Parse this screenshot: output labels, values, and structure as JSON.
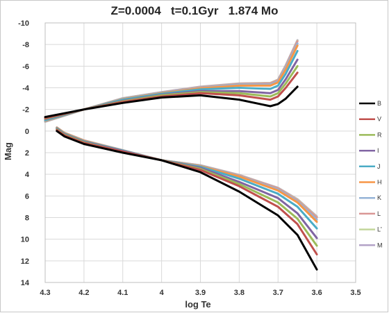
{
  "chart_data": {
    "type": "line",
    "title": "Z=0.0004   t=0.1Gyr   1.874 Mo",
    "xlabel": "log Te",
    "ylabel": "Mag",
    "xlim": [
      4.3,
      3.5
    ],
    "ylim": [
      -10,
      14
    ],
    "y_reversed": true,
    "x_reversed": true,
    "grid": true,
    "legend_position": "right",
    "x_ticks": [
      "4.3",
      "4.2",
      "4.1",
      "4",
      "3.9",
      "3.8",
      "3.7",
      "3.6",
      "3.5"
    ],
    "y_ticks": [
      "-10",
      "-8",
      "-6",
      "-4",
      "-2",
      "0",
      "2",
      "4",
      "6",
      "8",
      "10",
      "12",
      "14"
    ],
    "series": [
      {
        "name": "B",
        "color": "#000000",
        "main_sequence": [
          [
            4.27,
            -0.0
          ],
          [
            4.25,
            0.5
          ],
          [
            4.2,
            1.2
          ],
          [
            4.1,
            2.0
          ],
          [
            4.0,
            2.7
          ],
          [
            3.9,
            3.8
          ],
          [
            3.8,
            5.6
          ],
          [
            3.7,
            7.8
          ],
          [
            3.65,
            9.6
          ],
          [
            3.6,
            12.8
          ]
        ],
        "giant_branch": [
          [
            4.3,
            -1.3
          ],
          [
            4.2,
            -2.0
          ],
          [
            4.1,
            -2.6
          ],
          [
            4.0,
            -3.1
          ],
          [
            3.9,
            -3.3
          ],
          [
            3.8,
            -2.9
          ],
          [
            3.72,
            -2.3
          ],
          [
            3.7,
            -2.5
          ],
          [
            3.68,
            -3.0
          ],
          [
            3.65,
            -4.1
          ]
        ]
      },
      {
        "name": "V",
        "color": "#c0504d",
        "main_sequence": [
          [
            4.27,
            -0.1
          ],
          [
            4.25,
            0.4
          ],
          [
            4.2,
            1.1
          ],
          [
            4.1,
            1.9
          ],
          [
            4.0,
            2.7
          ],
          [
            3.9,
            3.6
          ],
          [
            3.8,
            5.1
          ],
          [
            3.7,
            7.0
          ],
          [
            3.65,
            8.6
          ],
          [
            3.6,
            11.4
          ]
        ],
        "giant_branch": [
          [
            4.3,
            -1.2
          ],
          [
            4.2,
            -2.0
          ],
          [
            4.1,
            -2.7
          ],
          [
            4.0,
            -3.2
          ],
          [
            3.9,
            -3.5
          ],
          [
            3.8,
            -3.3
          ],
          [
            3.72,
            -2.9
          ],
          [
            3.7,
            -3.2
          ],
          [
            3.68,
            -4.0
          ],
          [
            3.65,
            -5.4
          ]
        ]
      },
      {
        "name": "R",
        "color": "#9bbb59",
        "main_sequence": [
          [
            4.27,
            -0.15
          ],
          [
            4.25,
            0.35
          ],
          [
            4.2,
            1.05
          ],
          [
            4.1,
            1.9
          ],
          [
            4.0,
            2.7
          ],
          [
            3.9,
            3.5
          ],
          [
            3.8,
            4.9
          ],
          [
            3.7,
            6.6
          ],
          [
            3.65,
            8.1
          ],
          [
            3.6,
            10.6
          ]
        ],
        "giant_branch": [
          [
            4.3,
            -1.15
          ],
          [
            4.2,
            -2.0
          ],
          [
            4.1,
            -2.75
          ],
          [
            4.0,
            -3.3
          ],
          [
            3.9,
            -3.6
          ],
          [
            3.8,
            -3.5
          ],
          [
            3.72,
            -3.2
          ],
          [
            3.7,
            -3.5
          ],
          [
            3.68,
            -4.4
          ],
          [
            3.65,
            -6.0
          ]
        ]
      },
      {
        "name": "I",
        "color": "#8064a2",
        "main_sequence": [
          [
            4.27,
            -0.2
          ],
          [
            4.25,
            0.3
          ],
          [
            4.2,
            1.0
          ],
          [
            4.1,
            1.85
          ],
          [
            4.0,
            2.7
          ],
          [
            3.9,
            3.4
          ],
          [
            3.8,
            4.7
          ],
          [
            3.7,
            6.2
          ],
          [
            3.65,
            7.6
          ],
          [
            3.6,
            9.9
          ]
        ],
        "giant_branch": [
          [
            4.3,
            -1.1
          ],
          [
            4.2,
            -2.0
          ],
          [
            4.1,
            -2.8
          ],
          [
            4.0,
            -3.35
          ],
          [
            3.9,
            -3.7
          ],
          [
            3.8,
            -3.7
          ],
          [
            3.72,
            -3.5
          ],
          [
            3.7,
            -3.8
          ],
          [
            3.68,
            -4.8
          ],
          [
            3.65,
            -6.6
          ]
        ]
      },
      {
        "name": "J",
        "color": "#4bacc6",
        "main_sequence": [
          [
            4.27,
            -0.25
          ],
          [
            4.25,
            0.25
          ],
          [
            4.2,
            0.95
          ],
          [
            4.1,
            1.8
          ],
          [
            4.0,
            2.7
          ],
          [
            3.9,
            3.3
          ],
          [
            3.8,
            4.4
          ],
          [
            3.7,
            5.8
          ],
          [
            3.65,
            7.0
          ],
          [
            3.6,
            9.0
          ]
        ],
        "giant_branch": [
          [
            4.3,
            -1.0
          ],
          [
            4.2,
            -2.0
          ],
          [
            4.1,
            -2.9
          ],
          [
            4.0,
            -3.45
          ],
          [
            3.9,
            -3.85
          ],
          [
            3.8,
            -4.0
          ],
          [
            3.72,
            -3.9
          ],
          [
            3.7,
            -4.2
          ],
          [
            3.68,
            -5.3
          ],
          [
            3.65,
            -7.4
          ]
        ]
      },
      {
        "name": "H",
        "color": "#f79646",
        "main_sequence": [
          [
            4.27,
            -0.3
          ],
          [
            4.25,
            0.2
          ],
          [
            4.2,
            0.9
          ],
          [
            4.1,
            1.8
          ],
          [
            4.0,
            2.7
          ],
          [
            3.9,
            3.25
          ],
          [
            3.8,
            4.2
          ],
          [
            3.7,
            5.5
          ],
          [
            3.65,
            6.6
          ],
          [
            3.6,
            8.4
          ]
        ],
        "giant_branch": [
          [
            4.3,
            -0.95
          ],
          [
            4.2,
            -2.0
          ],
          [
            4.1,
            -2.95
          ],
          [
            4.0,
            -3.5
          ],
          [
            3.9,
            -3.95
          ],
          [
            3.8,
            -4.2
          ],
          [
            3.72,
            -4.2
          ],
          [
            3.7,
            -4.5
          ],
          [
            3.68,
            -5.7
          ],
          [
            3.65,
            -7.9
          ]
        ]
      },
      {
        "name": "K",
        "color": "#95b3d7",
        "main_sequence": [
          [
            4.27,
            -0.3
          ],
          [
            4.25,
            0.2
          ],
          [
            4.2,
            0.9
          ],
          [
            4.1,
            1.8
          ],
          [
            4.0,
            2.7
          ],
          [
            3.9,
            3.2
          ],
          [
            3.8,
            4.15
          ],
          [
            3.7,
            5.4
          ],
          [
            3.65,
            6.5
          ],
          [
            3.6,
            8.2
          ]
        ],
        "giant_branch": [
          [
            4.3,
            -0.9
          ],
          [
            4.2,
            -2.0
          ],
          [
            4.1,
            -3.0
          ],
          [
            4.0,
            -3.55
          ],
          [
            3.9,
            -4.0
          ],
          [
            3.8,
            -4.3
          ],
          [
            3.72,
            -4.3
          ],
          [
            3.7,
            -4.6
          ],
          [
            3.68,
            -5.9
          ],
          [
            3.65,
            -8.1
          ]
        ]
      },
      {
        "name": "L",
        "color": "#d99694",
        "main_sequence": [
          [
            4.27,
            -0.32
          ],
          [
            4.25,
            0.18
          ],
          [
            4.2,
            0.88
          ],
          [
            4.1,
            1.78
          ],
          [
            4.0,
            2.7
          ],
          [
            3.9,
            3.18
          ],
          [
            3.8,
            4.1
          ],
          [
            3.7,
            5.3
          ],
          [
            3.65,
            6.4
          ],
          [
            3.6,
            8.0
          ]
        ],
        "giant_branch": [
          [
            4.3,
            -0.88
          ],
          [
            4.2,
            -2.0
          ],
          [
            4.1,
            -3.02
          ],
          [
            4.0,
            -3.57
          ],
          [
            3.9,
            -4.05
          ],
          [
            3.8,
            -4.35
          ],
          [
            3.72,
            -4.4
          ],
          [
            3.7,
            -4.7
          ],
          [
            3.68,
            -6.0
          ],
          [
            3.65,
            -8.3
          ]
        ]
      },
      {
        "name": "L'",
        "color": "#c3d69b",
        "main_sequence": [
          [
            4.27,
            -0.33
          ],
          [
            4.25,
            0.17
          ],
          [
            4.2,
            0.87
          ],
          [
            4.1,
            1.77
          ],
          [
            4.0,
            2.7
          ],
          [
            3.9,
            3.17
          ],
          [
            3.8,
            4.08
          ],
          [
            3.7,
            5.28
          ],
          [
            3.65,
            6.35
          ],
          [
            3.6,
            7.95
          ]
        ],
        "giant_branch": [
          [
            4.3,
            -0.87
          ],
          [
            4.2,
            -2.0
          ],
          [
            4.1,
            -3.03
          ],
          [
            4.0,
            -3.58
          ],
          [
            3.9,
            -4.07
          ],
          [
            3.8,
            -4.38
          ],
          [
            3.72,
            -4.43
          ],
          [
            3.7,
            -4.73
          ],
          [
            3.68,
            -6.05
          ],
          [
            3.65,
            -8.35
          ]
        ]
      },
      {
        "name": "M",
        "color": "#b3a2c7",
        "main_sequence": [
          [
            4.27,
            -0.34
          ],
          [
            4.25,
            0.16
          ],
          [
            4.2,
            0.86
          ],
          [
            4.1,
            1.76
          ],
          [
            4.0,
            2.7
          ],
          [
            3.9,
            3.16
          ],
          [
            3.8,
            4.06
          ],
          [
            3.7,
            5.25
          ],
          [
            3.65,
            6.3
          ],
          [
            3.6,
            7.9
          ]
        ],
        "giant_branch": [
          [
            4.3,
            -0.86
          ],
          [
            4.2,
            -2.0
          ],
          [
            4.1,
            -3.04
          ],
          [
            4.0,
            -3.6
          ],
          [
            3.9,
            -4.1
          ],
          [
            3.8,
            -4.4
          ],
          [
            3.72,
            -4.45
          ],
          [
            3.7,
            -4.75
          ],
          [
            3.68,
            -6.1
          ],
          [
            3.65,
            -8.4
          ]
        ]
      }
    ]
  }
}
